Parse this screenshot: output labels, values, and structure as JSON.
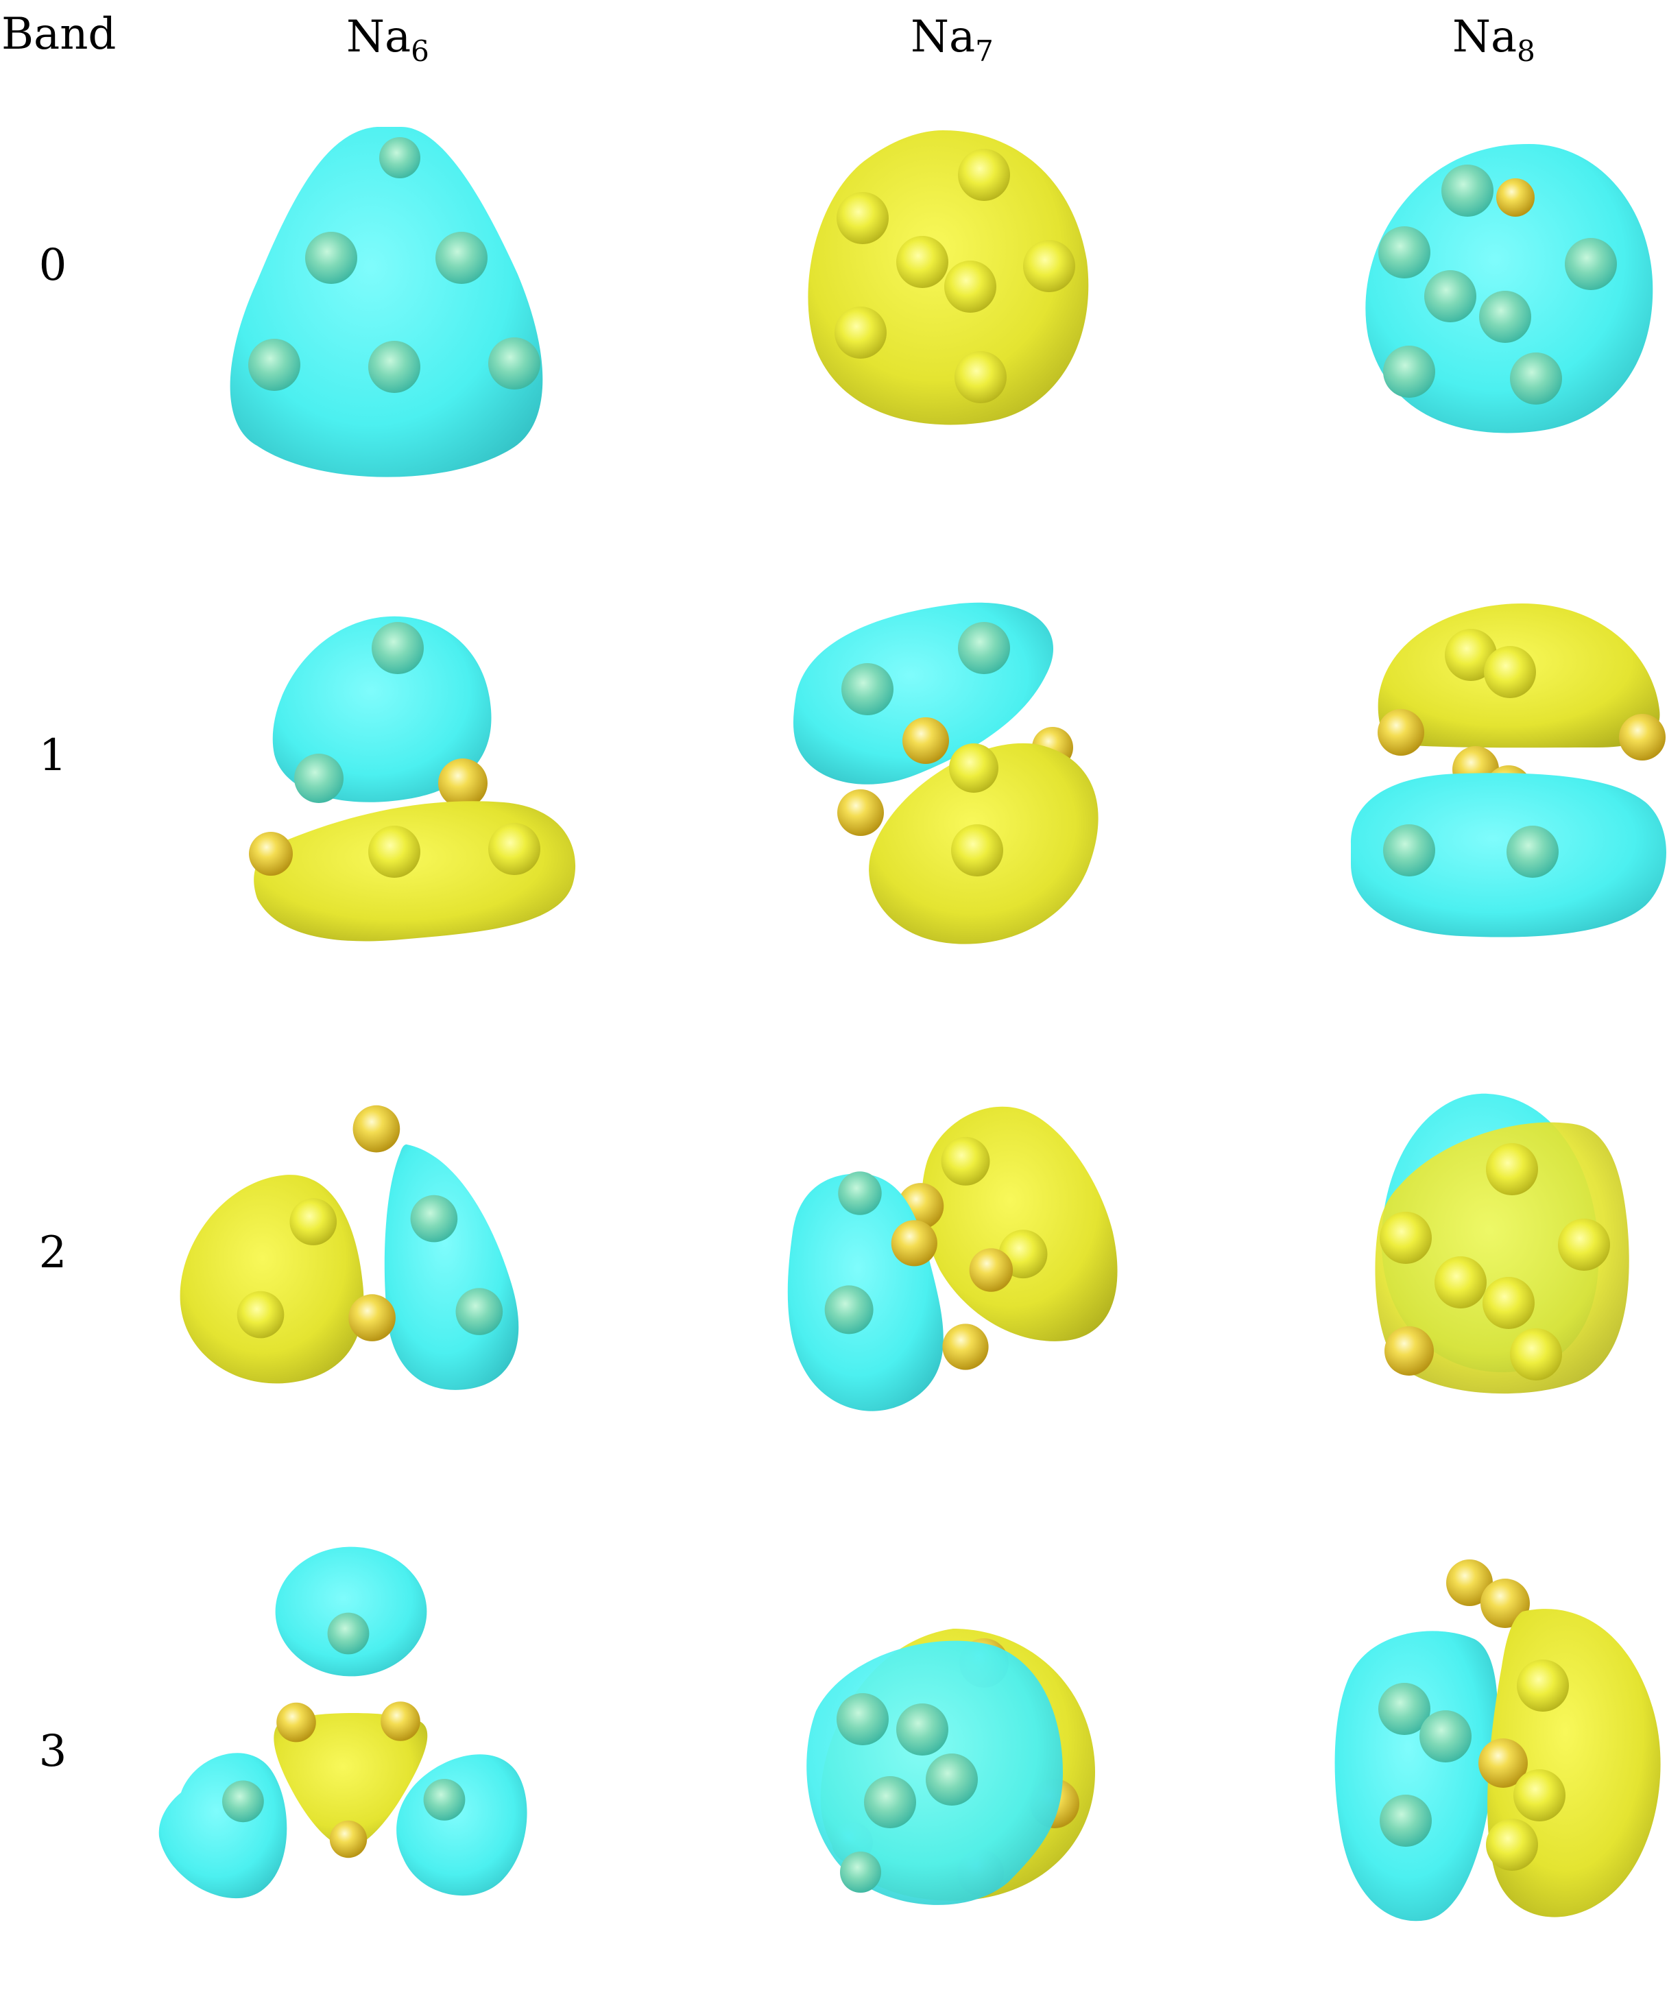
{
  "header": {
    "band_label": "Band",
    "columns": [
      {
        "base": "Na",
        "sub": "6"
      },
      {
        "base": "Na",
        "sub": "7"
      },
      {
        "base": "Na",
        "sub": "8"
      }
    ]
  },
  "rows": [
    {
      "label": "0"
    },
    {
      "label": "1"
    },
    {
      "label": "2"
    },
    {
      "label": "3"
    }
  ],
  "colors": {
    "cyan_lobe": "#4ff4f4",
    "yellow_lobe": "#e6e635",
    "atom": "#f2d84a"
  }
}
